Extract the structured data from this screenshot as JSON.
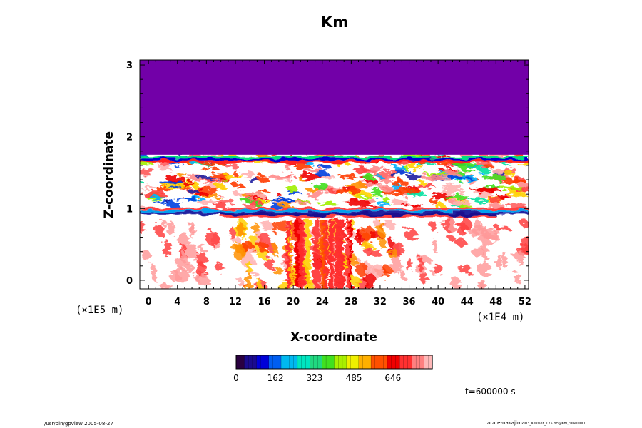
{
  "chart_data": {
    "type": "heatmap",
    "title": "Km",
    "xlabel": "X-coordinate",
    "ylabel": "Z-coordinate",
    "x_ticks": [
      "0",
      "4",
      "8",
      "12",
      "16",
      "20",
      "24",
      "28",
      "32",
      "36",
      "40",
      "44",
      "48",
      "52"
    ],
    "x_tick_values": [
      0,
      4,
      8,
      12,
      16,
      20,
      24,
      28,
      32,
      36,
      40,
      44,
      48,
      52
    ],
    "y_ticks": [
      "0",
      "1",
      "2",
      "3"
    ],
    "y_tick_values": [
      0,
      1,
      2,
      3
    ],
    "xlim": [
      -1.2,
      52.5
    ],
    "ylim": [
      -0.12,
      3.07
    ],
    "x_scale_label": "(×1E4 m)",
    "y_scale_label": "(×1E5 m)",
    "colorbar": {
      "ticks": [
        "0",
        "162",
        "323",
        "485",
        "646"
      ],
      "tick_values": [
        0,
        162,
        323,
        485,
        646
      ],
      "range": [
        0,
        808
      ],
      "colors": [
        "#2a0040",
        "#1b0b8e",
        "#0000d8",
        "#005ef2",
        "#00b8f0",
        "#00e6c0",
        "#20d880",
        "#40e020",
        "#a8f000",
        "#f0f000",
        "#ffb000",
        "#ff5000",
        "#f00000",
        "#ff3030",
        "#ff8080",
        "#ffb8b8"
      ]
    },
    "top_region": {
      "z_from": 1.75,
      "z_to": 3.07,
      "value_level": "low",
      "color": "#7200a8"
    },
    "bands": [
      {
        "name": "upper-turbulent-layer",
        "z": 1.7,
        "x_from": -1.2,
        "x_to": 52.5
      },
      {
        "name": "inversion-layer",
        "z": 0.98,
        "x_from": -1.2,
        "x_to": 52.5
      },
      {
        "name": "plume-top",
        "z": 0.9,
        "x_from": 10,
        "x_to": 48
      }
    ],
    "time_label": "t=600000 s"
  },
  "footer": {
    "left": "/usr/bin/gpview 2005-08-27",
    "right_main": "arare-nakajima",
    "right_small": "03_Kessler_175.nc@Km,t=600000"
  }
}
